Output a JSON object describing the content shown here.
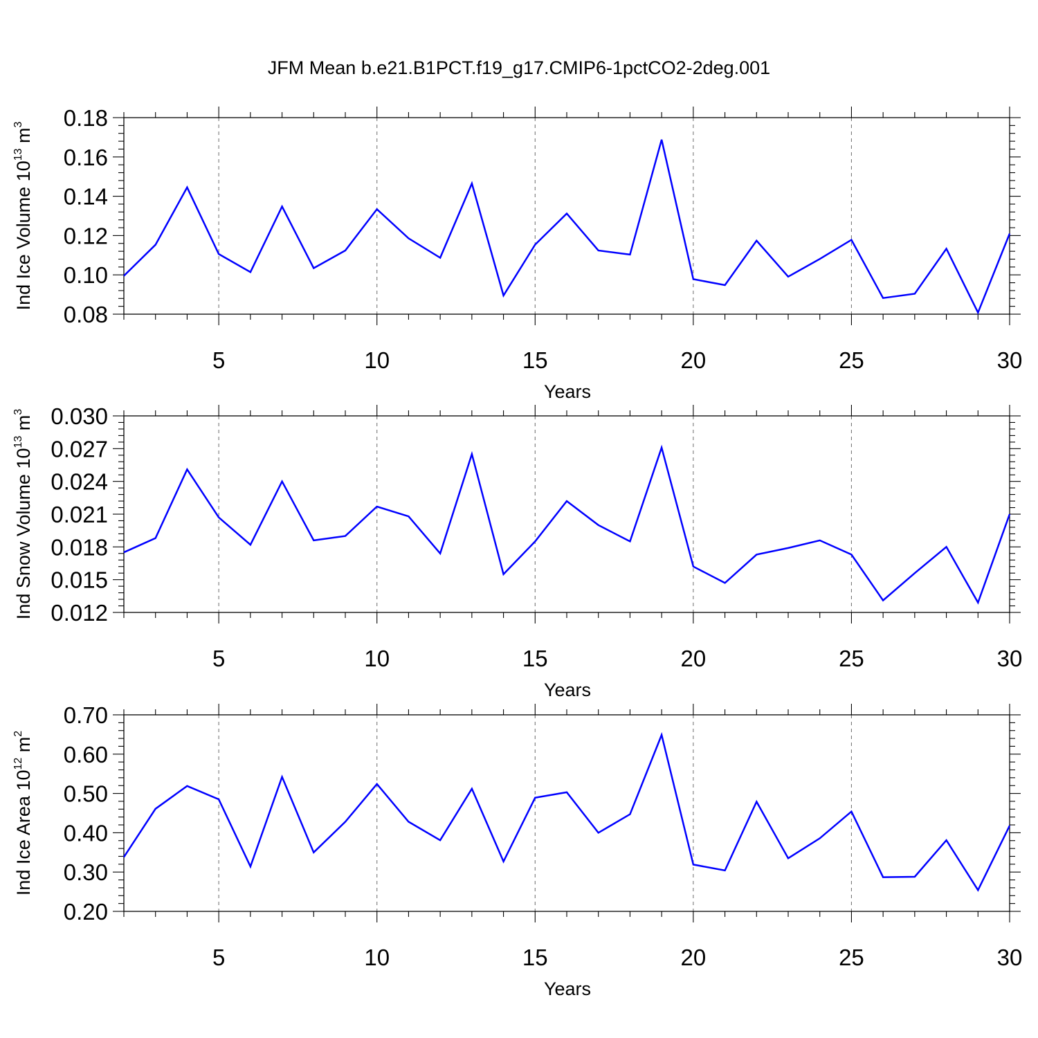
{
  "title": "JFM Mean b.e21.B1PCT.f19_g17.CMIP6-1pctCO2-2deg.001",
  "chart_data": [
    {
      "type": "line",
      "xlabel": "Years",
      "ylabel": "Ind Ice Volume 10",
      "ylabel_exp": "13",
      "ylabel_unit": " m",
      "ylabel_unit_exp": "3",
      "xlim": [
        2,
        30
      ],
      "ylim": [
        0.08,
        0.18
      ],
      "xticks": [
        5,
        10,
        15,
        20,
        25,
        30
      ],
      "yticks": [
        0.08,
        0.1,
        0.12,
        0.14,
        0.16,
        0.18
      ],
      "ytick_labels": [
        "0.08",
        "0.10",
        "0.12",
        "0.14",
        "0.16",
        "0.18"
      ],
      "grid": "dashed vertical at major x ticks",
      "series": [
        {
          "color": "#0000ff",
          "x": [
            2,
            3,
            4,
            5,
            6,
            7,
            8,
            9,
            10,
            11,
            12,
            13,
            14,
            15,
            16,
            17,
            18,
            19,
            20,
            21,
            22,
            23,
            24,
            25,
            26,
            27,
            28,
            29,
            30
          ],
          "values": [
            0.0995,
            0.1153,
            0.1445,
            0.1106,
            0.1014,
            0.1348,
            0.1034,
            0.1124,
            0.1334,
            0.1186,
            0.1087,
            0.1465,
            0.0895,
            0.1154,
            0.1312,
            0.1124,
            0.1103,
            0.1688,
            0.0978,
            0.0948,
            0.1174,
            0.0991,
            0.1081,
            0.1178,
            0.0882,
            0.0904,
            0.1133,
            0.0808,
            0.121
          ]
        }
      ]
    },
    {
      "type": "line",
      "xlabel": "Years",
      "ylabel": "Ind Snow Volume 10",
      "ylabel_exp": "13",
      "ylabel_unit": " m",
      "ylabel_unit_exp": "3",
      "xlim": [
        2,
        30
      ],
      "ylim": [
        0.012,
        0.03
      ],
      "xticks": [
        5,
        10,
        15,
        20,
        25,
        30
      ],
      "yticks": [
        0.012,
        0.015,
        0.018,
        0.021,
        0.024,
        0.027,
        0.03
      ],
      "ytick_labels": [
        "0.012",
        "0.015",
        "0.018",
        "0.021",
        "0.024",
        "0.027",
        "0.030"
      ],
      "grid": "dashed vertical at major x ticks",
      "series": [
        {
          "color": "#0000ff",
          "x": [
            2,
            3,
            4,
            5,
            6,
            7,
            8,
            9,
            10,
            11,
            12,
            13,
            14,
            15,
            16,
            17,
            18,
            19,
            20,
            21,
            22,
            23,
            24,
            25,
            26,
            27,
            28,
            29,
            30
          ],
          "values": [
            0.0175,
            0.0188,
            0.0251,
            0.0207,
            0.0182,
            0.024,
            0.0186,
            0.019,
            0.0217,
            0.0208,
            0.0174,
            0.0265,
            0.0155,
            0.0185,
            0.0222,
            0.02,
            0.0185,
            0.0271,
            0.0162,
            0.0147,
            0.0173,
            0.0179,
            0.0186,
            0.0173,
            0.0131,
            0.0156,
            0.018,
            0.0129,
            0.021
          ]
        }
      ]
    },
    {
      "type": "line",
      "xlabel": "Years",
      "ylabel": "Ind Ice Area 10",
      "ylabel_exp": "12",
      "ylabel_unit": " m",
      "ylabel_unit_exp": "2",
      "xlim": [
        2,
        30
      ],
      "ylim": [
        0.2,
        0.7
      ],
      "xticks": [
        5,
        10,
        15,
        20,
        25,
        30
      ],
      "yticks": [
        0.2,
        0.3,
        0.4,
        0.5,
        0.6,
        0.7
      ],
      "ytick_labels": [
        "0.20",
        "0.30",
        "0.40",
        "0.50",
        "0.60",
        "0.70"
      ],
      "grid": "dashed vertical at major x ticks",
      "series": [
        {
          "color": "#0000ff",
          "x": [
            2,
            3,
            4,
            5,
            6,
            7,
            8,
            9,
            10,
            11,
            12,
            13,
            14,
            15,
            16,
            17,
            18,
            19,
            20,
            21,
            22,
            23,
            24,
            25,
            26,
            27,
            28,
            29,
            30
          ],
          "values": [
            0.338,
            0.461,
            0.519,
            0.485,
            0.314,
            0.542,
            0.35,
            0.428,
            0.524,
            0.428,
            0.381,
            0.512,
            0.327,
            0.489,
            0.503,
            0.4,
            0.447,
            0.649,
            0.319,
            0.304,
            0.479,
            0.335,
            0.386,
            0.454,
            0.287,
            0.288,
            0.381,
            0.254,
            0.418
          ]
        }
      ]
    }
  ]
}
